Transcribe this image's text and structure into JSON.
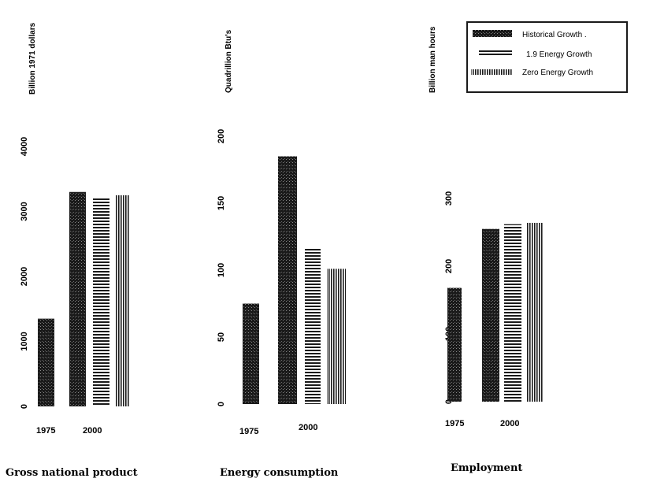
{
  "legend": {
    "entries": [
      {
        "label": "Historical Growth .",
        "pattern": "solid"
      },
      {
        "label": "1.9 Energy Growth",
        "pattern": "horizontal"
      },
      {
        "label": "Zero Energy Growth",
        "pattern": "vertical"
      }
    ]
  },
  "colors": {
    "ink": "#1a1a1a"
  },
  "chart_data": [
    {
      "type": "bar",
      "title": "Gross national product",
      "ylabel": "Billion 1971 dollars",
      "ylim": [
        0,
        4000
      ],
      "yticks": [
        "0",
        "1000",
        "2000",
        "3000",
        "4000"
      ],
      "x_tick_labels": [
        "1975",
        "2000"
      ],
      "bars": [
        {
          "x_label": "1975",
          "series": "Historical Growth .",
          "value": 1350
        },
        {
          "x_label": "2000",
          "series": "Historical Growth .",
          "value": 3300
        },
        {
          "x_label": "2000",
          "series": "1.9 Energy Growth",
          "value": 3200
        },
        {
          "x_label": "2000",
          "series": "Zero Energy Growth",
          "value": 3250
        }
      ]
    },
    {
      "type": "bar",
      "title": "Energy consumption",
      "ylabel": "Quadrillion Btu's",
      "ylim": [
        0,
        200
      ],
      "yticks": [
        "0",
        "50",
        "100",
        "150",
        "200"
      ],
      "x_tick_labels": [
        "1975",
        "2000"
      ],
      "bars": [
        {
          "x_label": "1975",
          "series": "Historical Growth .",
          "value": 75
        },
        {
          "x_label": "2000",
          "series": "Historical Growth .",
          "value": 185
        },
        {
          "x_label": "2000",
          "series": "1.9 Energy Growth",
          "value": 117
        },
        {
          "x_label": "2000",
          "series": "Zero Energy Growth",
          "value": 101
        }
      ]
    },
    {
      "type": "bar",
      "title": "Employment",
      "ylabel": "Billion man hours",
      "ylim": [
        0,
        400
      ],
      "yticks": [
        "0",
        "100",
        "200",
        "300"
      ],
      "x_tick_labels": [
        "1975",
        "2000"
      ],
      "bars": [
        {
          "x_label": "1975",
          "series": "Historical Growth .",
          "value": 168
        },
        {
          "x_label": "2000",
          "series": "Historical Growth .",
          "value": 255
        },
        {
          "x_label": "2000",
          "series": "1.9 Energy Growth",
          "value": 262
        },
        {
          "x_label": "2000",
          "series": "Zero Energy Growth",
          "value": 264
        }
      ]
    }
  ]
}
